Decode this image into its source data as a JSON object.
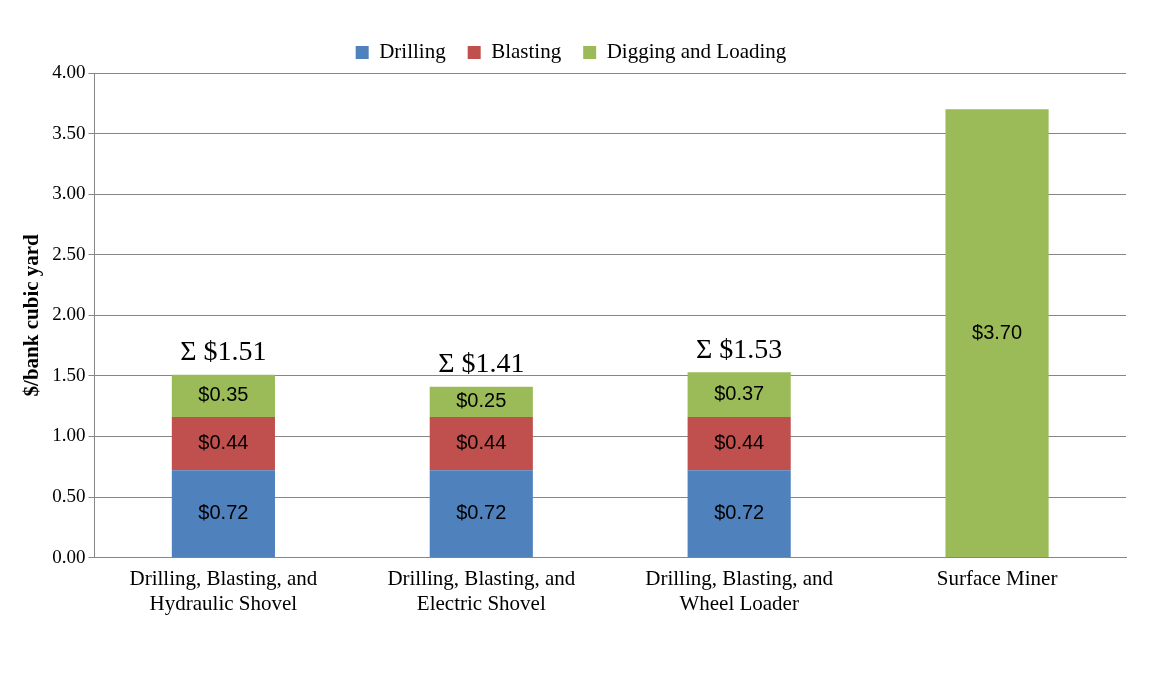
{
  "chart_data": {
    "type": "bar",
    "stacked": true,
    "ylabel": "$/bank cubic yard",
    "categories": [
      "Drilling, Blasting, and Hydraulic Shovel",
      "Drilling, Blasting, and Electric Shovel",
      "Drilling, Blasting, and Wheel Loader",
      "Surface Miner"
    ],
    "series": [
      {
        "name": "Drilling",
        "color": "#4f81bd",
        "values": [
          0.72,
          0.72,
          0.72,
          null
        ],
        "value_labels": [
          "$0.72",
          "$0.72",
          "$0.72",
          null
        ]
      },
      {
        "name": "Blasting",
        "color": "#c0504d",
        "values": [
          0.44,
          0.44,
          0.44,
          null
        ],
        "value_labels": [
          "$0.44",
          "$0.44",
          "$0.44",
          null
        ]
      },
      {
        "name": "Digging and Loading",
        "color": "#9bbb59",
        "values": [
          0.35,
          0.25,
          0.37,
          3.7
        ],
        "value_labels": [
          "$0.35",
          "$0.25",
          "$0.37",
          "$3.70"
        ]
      }
    ],
    "totals": [
      "Σ $1.51",
      "Σ $1.41",
      "Σ $1.53",
      null
    ],
    "ylim": [
      0,
      4
    ],
    "yticks": [
      {
        "value": 0,
        "label": "0.00"
      },
      {
        "value": 0.5,
        "label": "0.50"
      },
      {
        "value": 1,
        "label": "1.00"
      },
      {
        "value": 1.5,
        "label": "1.50"
      },
      {
        "value": 2,
        "label": "2.00"
      },
      {
        "value": 2.5,
        "label": "2.50"
      },
      {
        "value": 3,
        "label": "3.00"
      },
      {
        "value": 3.5,
        "label": "3.50"
      },
      {
        "value": 4,
        "label": "4.00"
      }
    ],
    "grid": "y",
    "legend": "top"
  }
}
